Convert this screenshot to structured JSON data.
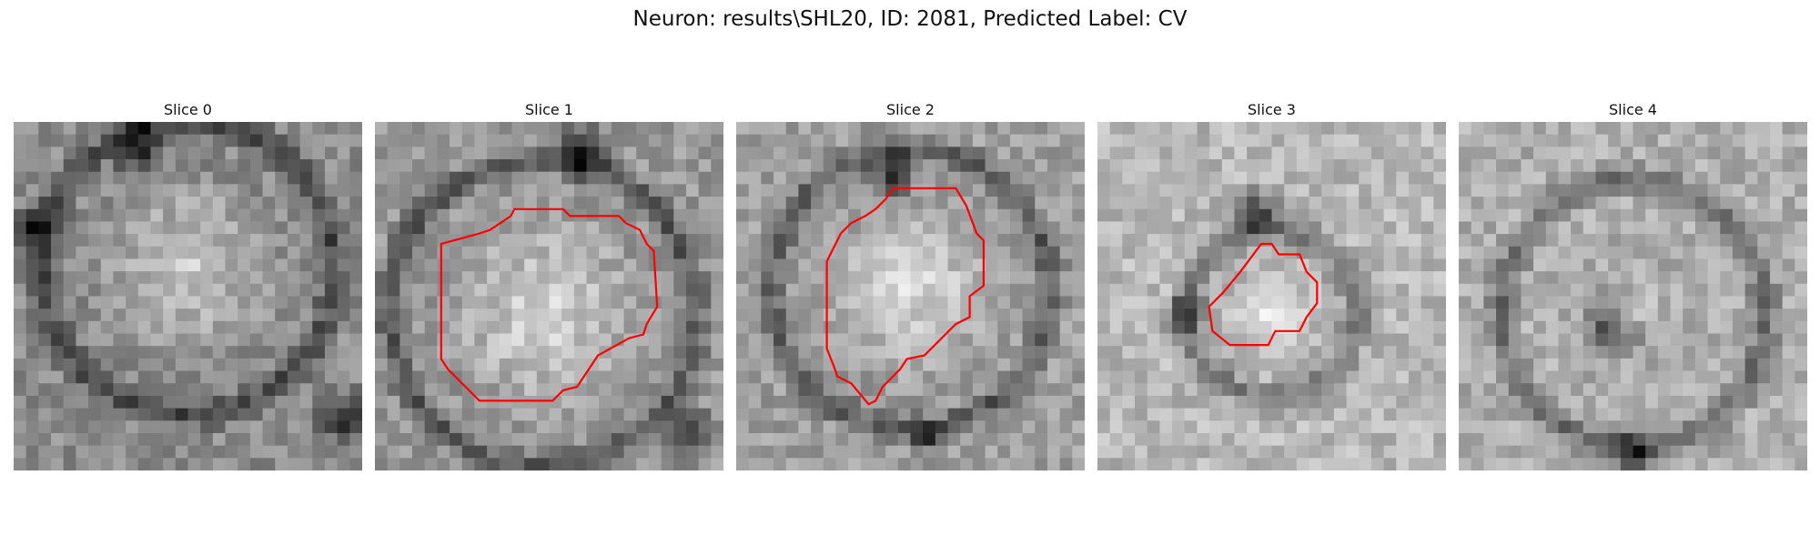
{
  "figure": {
    "title": "Neuron: results\\SHL20, ID: 2081, Predicted Label: CV"
  },
  "outline_color": "#ff0000",
  "panels": [
    {
      "label": "Slice 0",
      "has_outline": false
    },
    {
      "label": "Slice 1",
      "has_outline": true
    },
    {
      "label": "Slice 2",
      "has_outline": true
    },
    {
      "label": "Slice 3",
      "has_outline": true
    },
    {
      "label": "Slice 4",
      "has_outline": false
    }
  ]
}
